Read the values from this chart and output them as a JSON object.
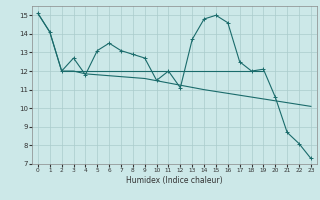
{
  "xlabel": "Humidex (Indice chaleur)",
  "xlim": [
    -0.5,
    23.5
  ],
  "ylim": [
    7,
    15.5
  ],
  "yticks": [
    7,
    8,
    9,
    10,
    11,
    12,
    13,
    14,
    15
  ],
  "xticks": [
    0,
    1,
    2,
    3,
    4,
    5,
    6,
    7,
    8,
    9,
    10,
    11,
    12,
    13,
    14,
    15,
    16,
    17,
    18,
    19,
    20,
    21,
    22,
    23
  ],
  "bg_color": "#cce8e8",
  "grid_color": "#aacccc",
  "line_color": "#1a6b6b",
  "line1_x": [
    0,
    1,
    2,
    3,
    4,
    5,
    6,
    7,
    8,
    9,
    10,
    11,
    12,
    13,
    14,
    15,
    16,
    17,
    18,
    19,
    20,
    21,
    22,
    23
  ],
  "line1_y": [
    15.1,
    14.1,
    12.0,
    12.7,
    11.8,
    13.1,
    13.5,
    13.1,
    12.9,
    12.7,
    11.5,
    12.0,
    11.1,
    13.7,
    14.8,
    15.0,
    14.6,
    12.5,
    12.0,
    12.1,
    10.6,
    8.7,
    8.1,
    7.3
  ],
  "line2_x": [
    0,
    1,
    2,
    3,
    4,
    9,
    14,
    19,
    23
  ],
  "line2_y": [
    15.1,
    14.1,
    12.0,
    12.0,
    11.85,
    11.6,
    11.0,
    10.5,
    10.1
  ],
  "line3_x": [
    2,
    19
  ],
  "line3_y": [
    12.0,
    12.0
  ]
}
